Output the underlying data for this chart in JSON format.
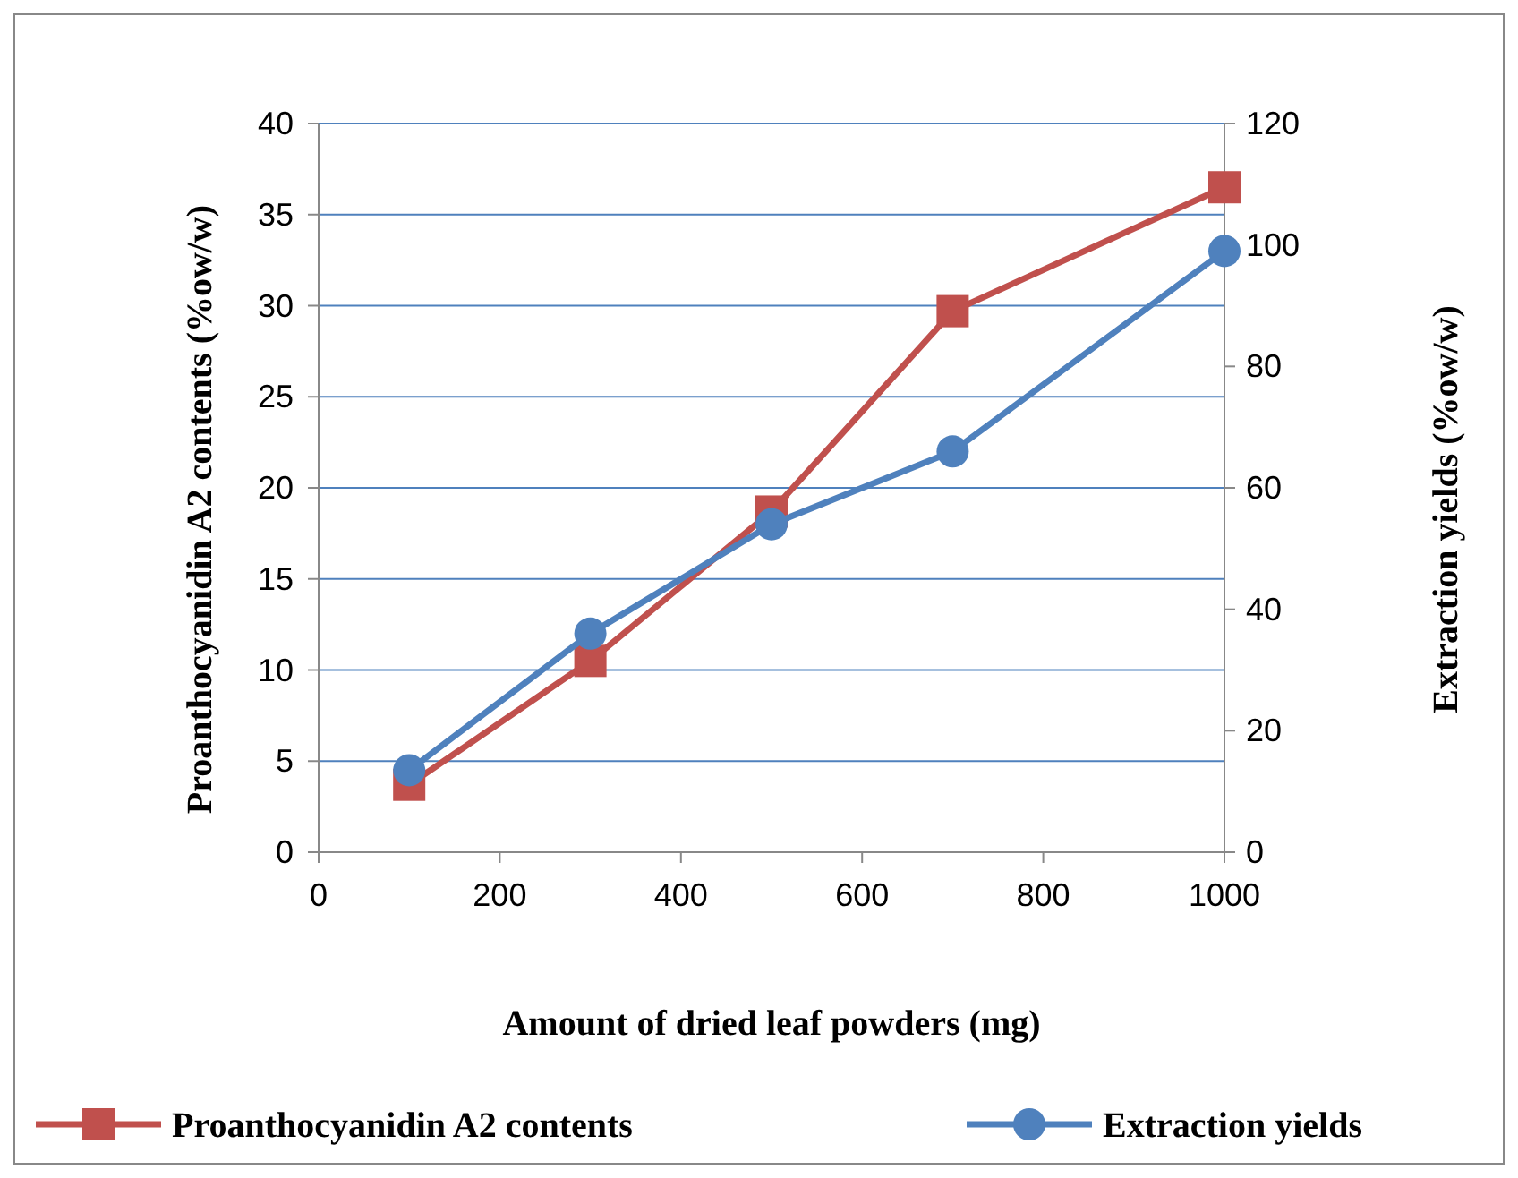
{
  "chart_data": {
    "type": "line",
    "xlabel": "Amount of dried leaf powders (mg)",
    "ylabel": "Proanthocyanidin A2 contents (%ow/w)",
    "y2label": "Extraction yields (%ow/w)",
    "x": [
      100,
      300,
      500,
      700,
      1000
    ],
    "series": [
      {
        "name": "Proanthocyanidin A2 contents",
        "color": "#c0504d",
        "marker": "square",
        "values": [
          3.7,
          10.5,
          18.7,
          29.7,
          36.5
        ]
      },
      {
        "name": "Extraction yields",
        "color": "#4f81bd",
        "marker": "circle",
        "axis": "y2",
        "values": [
          13.5,
          36,
          54,
          66,
          99
        ]
      }
    ],
    "xlim": [
      0,
      1000
    ],
    "xticks": [
      0,
      200,
      400,
      600,
      800,
      1000
    ],
    "ylim": [
      0,
      40
    ],
    "yticks": [
      0,
      5,
      10,
      15,
      20,
      25,
      30,
      35,
      40
    ],
    "y2lim": [
      0,
      120
    ],
    "y2ticks": [
      0,
      20,
      40,
      60,
      80,
      100,
      120
    ],
    "grid": "y",
    "legend": "bottom"
  }
}
